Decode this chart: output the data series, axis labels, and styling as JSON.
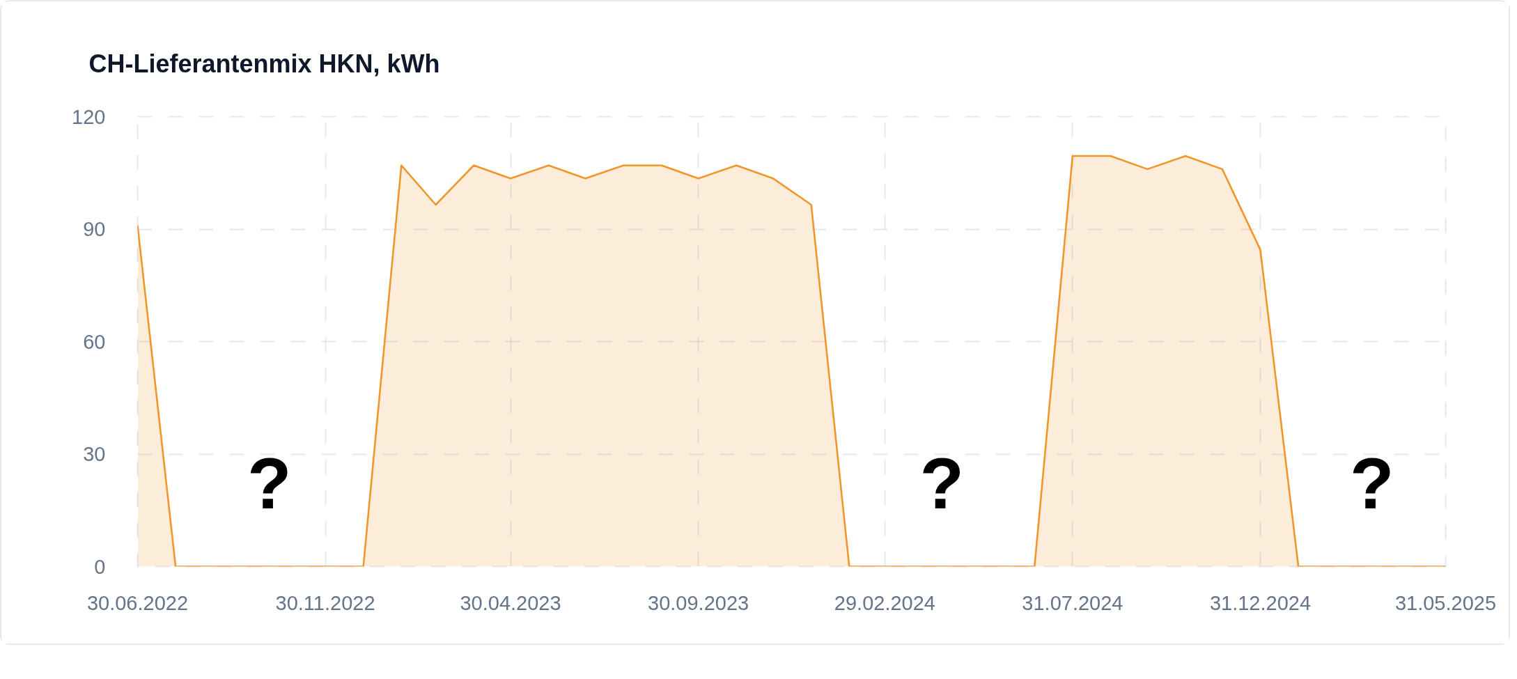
{
  "chart_data": {
    "type": "area",
    "title": "CH-Lieferantenmix HKN, kWh",
    "color": "#f0962a",
    "line_style": "solid",
    "grid": true,
    "x": [
      "2022-06-30",
      "2022-07-31",
      "2022-08-31",
      "2022-09-30",
      "2022-10-31",
      "2022-11-30",
      "2022-12-31",
      "2023-01-31",
      "2023-02-28",
      "2023-03-31",
      "2023-04-30",
      "2023-05-31",
      "2023-06-30",
      "2023-07-31",
      "2023-08-31",
      "2023-09-30",
      "2023-10-31",
      "2023-11-30",
      "2023-12-31",
      "2024-01-31",
      "2024-02-29",
      "2024-03-31",
      "2024-04-30",
      "2024-05-31",
      "2024-06-30",
      "2024-07-31",
      "2024-08-31",
      "2024-09-30",
      "2024-10-31",
      "2024-11-30",
      "2024-12-31",
      "2025-01-31",
      "2025-02-28",
      "2025-03-31",
      "2025-04-30",
      "2025-05-31"
    ],
    "values": [
      91,
      0,
      0,
      0,
      0,
      0,
      0,
      107,
      96.5,
      107,
      103.5,
      107,
      103.5,
      107,
      107,
      103.5,
      107,
      103.5,
      96.5,
      0,
      0,
      0,
      0,
      0,
      0,
      109.5,
      109.5,
      106,
      109.5,
      106,
      84.5,
      0,
      0,
      0,
      0,
      0
    ],
    "xlim": [
      "2022-06-30",
      "2025-05-31"
    ],
    "xticks": [
      {
        "value": "2022-06-30",
        "label": "30.06.2022"
      },
      {
        "value": "2022-11-30",
        "label": "30.11.2022"
      },
      {
        "value": "2023-04-30",
        "label": "30.04.2023"
      },
      {
        "value": "2023-09-30",
        "label": "30.09.2023"
      },
      {
        "value": "2024-02-29",
        "label": "29.02.2024"
      },
      {
        "value": "2024-07-31",
        "label": "31.07.2024"
      },
      {
        "value": "2024-12-31",
        "label": "31.12.2024"
      },
      {
        "value": "2025-05-31",
        "label": "31.05.2025"
      }
    ],
    "ylim": [
      0,
      120
    ],
    "yticks": [
      0,
      30,
      60,
      90,
      120
    ],
    "annotations": [
      "?",
      "?",
      "?"
    ]
  }
}
